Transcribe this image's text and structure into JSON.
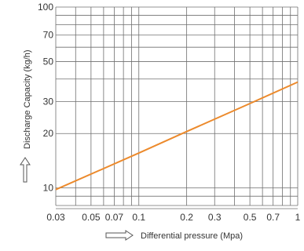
{
  "chart_data": {
    "type": "line",
    "title": "",
    "xlabel": "Differential pressure (Mpa)",
    "ylabel": "Discharge Capacity (kg/h)",
    "x_scale": "log",
    "y_scale": "log",
    "xlim": [
      0.03,
      1
    ],
    "ylim": [
      8,
      100
    ],
    "grid": true,
    "x_ticks": [
      {
        "value": 0.03,
        "label": "0.03"
      },
      {
        "value": 0.05,
        "label": "0.05"
      },
      {
        "value": 0.07,
        "label": "0.07"
      },
      {
        "value": 0.1,
        "label": "0.1"
      },
      {
        "value": 0.2,
        "label": "0.2"
      },
      {
        "value": 0.3,
        "label": "0.3"
      },
      {
        "value": 0.5,
        "label": "0.5"
      },
      {
        "value": 0.7,
        "label": "0.7"
      },
      {
        "value": 1,
        "label": "1"
      }
    ],
    "y_ticks": [
      {
        "value": 10,
        "label": "10"
      },
      {
        "value": 20,
        "label": "20"
      },
      {
        "value": 30,
        "label": "30"
      },
      {
        "value": 50,
        "label": "50"
      },
      {
        "value": 70,
        "label": "70"
      },
      {
        "value": 100,
        "label": "100"
      }
    ],
    "x_gridlines": [
      0.03,
      0.04,
      0.05,
      0.06,
      0.07,
      0.08,
      0.09,
      0.1,
      0.2,
      0.3,
      0.4,
      0.5,
      0.6,
      0.7,
      0.8,
      0.9,
      1
    ],
    "y_gridlines": [
      8,
      9,
      10,
      20,
      30,
      40,
      50,
      60,
      70,
      80,
      90,
      100
    ],
    "series": [
      {
        "color": "#ec8a2c",
        "x": [
          0.03,
          0.1,
          0.2,
          0.5,
          1
        ],
        "y": [
          9.8,
          15.6,
          20.5,
          29.3,
          38.5
        ]
      }
    ]
  }
}
